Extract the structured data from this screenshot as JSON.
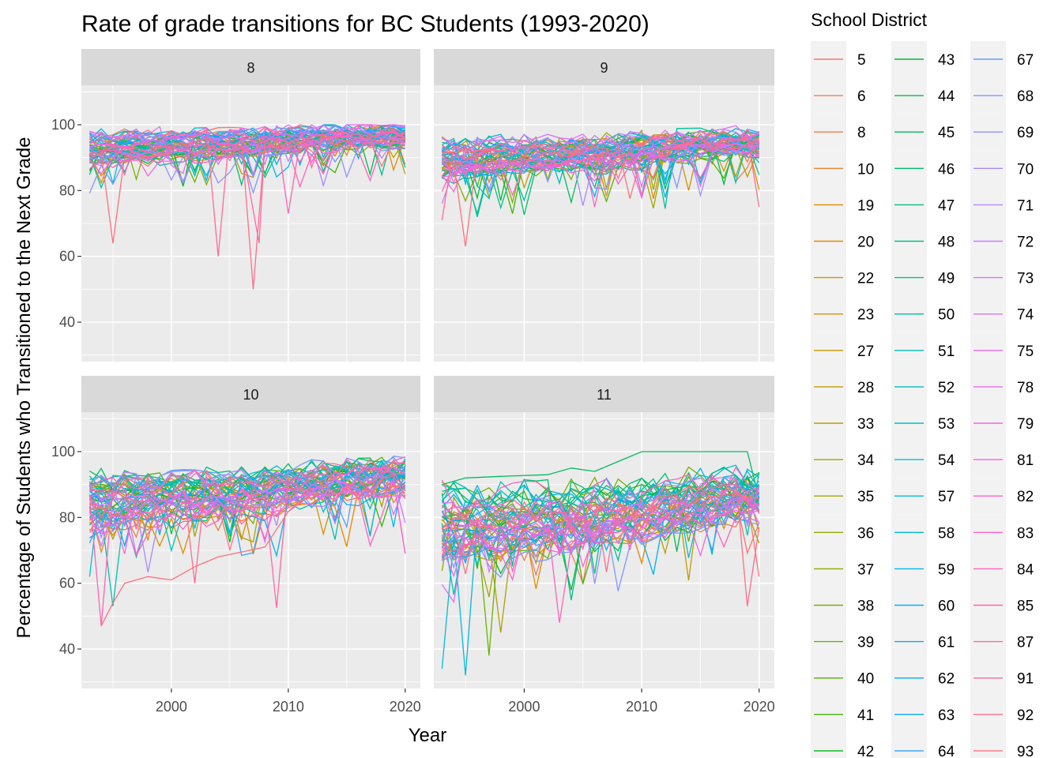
{
  "chart_data": {
    "type": "line",
    "title": "Rate of grade transitions for BC Students (1993-2020)",
    "xlabel": "Year",
    "ylabel": "Percentage of Students who Transitioned to the Next Grade",
    "xlim": [
      1992.3,
      2021.3
    ],
    "ylim": [
      28,
      112
    ],
    "x_ticks": [
      2000,
      2010,
      2020
    ],
    "y_ticks": [
      40,
      60,
      80,
      100
    ],
    "grid": true,
    "legend": {
      "title": "School District",
      "placement": "right",
      "entries": [
        "5",
        "6",
        "8",
        "10",
        "19",
        "20",
        "22",
        "23",
        "27",
        "28",
        "33",
        "34",
        "35",
        "36",
        "37",
        "38",
        "39",
        "40",
        "41",
        "42",
        "43",
        "44",
        "45",
        "46",
        "47",
        "48",
        "49",
        "50",
        "51",
        "52",
        "53",
        "54",
        "57",
        "58",
        "59",
        "60",
        "61",
        "62",
        "63",
        "64",
        "67",
        "68",
        "69",
        "70",
        "71",
        "72",
        "73",
        "74",
        "75",
        "78",
        "79",
        "81",
        "82",
        "83",
        "84",
        "85",
        "87",
        "91",
        "92",
        "93"
      ]
    },
    "panels": [
      {
        "grade": "8",
        "median_by_year": [
          [
            1993,
            92.5
          ],
          [
            1994,
            92.8
          ],
          [
            1995,
            92.6
          ],
          [
            1996,
            93.0
          ],
          [
            1997,
            93.4
          ],
          [
            1998,
            93.1
          ],
          [
            1999,
            93.5
          ],
          [
            2000,
            93.8
          ],
          [
            2001,
            94.0
          ],
          [
            2002,
            93.7
          ],
          [
            2003,
            94.2
          ],
          [
            2004,
            94.0
          ],
          [
            2005,
            94.3
          ],
          [
            2006,
            94.5
          ],
          [
            2007,
            94.2
          ],
          [
            2008,
            94.8
          ],
          [
            2009,
            95.0
          ],
          [
            2010,
            95.3
          ],
          [
            2011,
            95.5
          ],
          [
            2012,
            95.6
          ],
          [
            2013,
            95.8
          ],
          [
            2014,
            96.0
          ],
          [
            2015,
            96.1
          ],
          [
            2016,
            96.3
          ],
          [
            2017,
            96.5
          ],
          [
            2018,
            96.6
          ],
          [
            2019,
            96.8
          ],
          [
            2020,
            96.2
          ]
        ],
        "notable_lows": [
          {
            "district": "93",
            "year": 1995,
            "value": 64
          },
          {
            "district": "91",
            "year": 2004,
            "value": 60
          },
          {
            "district": "92",
            "year": 2007,
            "value": 50
          },
          {
            "district": "87",
            "year": 2007.5,
            "value": 64
          },
          {
            "district": "85",
            "year": 2010,
            "value": 73
          }
        ]
      },
      {
        "grade": "9",
        "median_by_year": [
          [
            1993,
            89.5
          ],
          [
            1994,
            89.7
          ],
          [
            1995,
            89.4
          ],
          [
            1996,
            89.8
          ],
          [
            1997,
            90.0
          ],
          [
            1998,
            90.2
          ],
          [
            1999,
            90.1
          ],
          [
            2000,
            90.5
          ],
          [
            2001,
            90.6
          ],
          [
            2002,
            90.4
          ],
          [
            2003,
            90.8
          ],
          [
            2004,
            91.0
          ],
          [
            2005,
            91.2
          ],
          [
            2006,
            91.0
          ],
          [
            2007,
            91.5
          ],
          [
            2008,
            91.8
          ],
          [
            2009,
            92.0
          ],
          [
            2010,
            92.4
          ],
          [
            2011,
            92.8
          ],
          [
            2012,
            93.0
          ],
          [
            2013,
            93.4
          ],
          [
            2014,
            93.6
          ],
          [
            2015,
            93.8
          ],
          [
            2016,
            94.0
          ],
          [
            2017,
            94.3
          ],
          [
            2018,
            94.5
          ],
          [
            2019,
            94.6
          ],
          [
            2020,
            94.0
          ]
        ],
        "notable_lows": [
          {
            "district": "92",
            "year": 1993,
            "value": 71
          },
          {
            "district": "93",
            "year": 1995,
            "value": 63
          },
          {
            "district": "50",
            "year": 1996,
            "value": 72
          },
          {
            "district": "84",
            "year": 2006,
            "value": 75
          },
          {
            "district": "49",
            "year": 2012,
            "value": 74.5
          },
          {
            "district": "92",
            "year": 2020,
            "value": 75
          }
        ]
      },
      {
        "grade": "10",
        "median_by_year": [
          [
            1993,
            84.0
          ],
          [
            1994,
            84.3
          ],
          [
            1995,
            84.0
          ],
          [
            1996,
            84.6
          ],
          [
            1997,
            84.8
          ],
          [
            1998,
            85.0
          ],
          [
            1999,
            85.2
          ],
          [
            2000,
            85.5
          ],
          [
            2001,
            85.8
          ],
          [
            2002,
            85.6
          ],
          [
            2003,
            86.0
          ],
          [
            2004,
            86.3
          ],
          [
            2005,
            86.5
          ],
          [
            2006,
            86.8
          ],
          [
            2007,
            87.0
          ],
          [
            2008,
            87.4
          ],
          [
            2009,
            87.8
          ],
          [
            2010,
            88.3
          ],
          [
            2011,
            88.8
          ],
          [
            2012,
            89.2
          ],
          [
            2013,
            89.6
          ],
          [
            2014,
            90.0
          ],
          [
            2015,
            90.4
          ],
          [
            2016,
            90.8
          ],
          [
            2017,
            91.2
          ],
          [
            2018,
            91.5
          ],
          [
            2019,
            91.8
          ],
          [
            2020,
            91.2
          ]
        ],
        "notable_lows": [
          {
            "district": "54",
            "year": 1993,
            "value": 62
          },
          {
            "district": "85",
            "year": 1994,
            "value": 47
          },
          {
            "district": "51",
            "year": 1995,
            "value": 53
          },
          {
            "district": "91",
            "year": 2002,
            "value": 60
          },
          {
            "district": "87",
            "year": 2009,
            "value": 52.5
          },
          {
            "district": "82",
            "year": 2020,
            "value": 69
          }
        ],
        "district_93_series": [
          [
            1994,
            47
          ],
          [
            1995,
            54
          ],
          [
            1996,
            60
          ],
          [
            1998,
            62
          ],
          [
            2000,
            61
          ],
          [
            2002,
            65
          ],
          [
            2004,
            68
          ],
          [
            2006,
            69.5
          ],
          [
            2008,
            71
          ]
        ]
      },
      {
        "grade": "11",
        "median_by_year": [
          [
            1993,
            78.0
          ],
          [
            1994,
            78.3
          ],
          [
            1995,
            78.0
          ],
          [
            1996,
            78.5
          ],
          [
            1997,
            78.2
          ],
          [
            1998,
            78.8
          ],
          [
            1999,
            79.0
          ],
          [
            2000,
            79.2
          ],
          [
            2001,
            79.0
          ],
          [
            2002,
            79.5
          ],
          [
            2003,
            79.8
          ],
          [
            2004,
            80.0
          ],
          [
            2005,
            80.3
          ],
          [
            2006,
            80.5
          ],
          [
            2007,
            80.8
          ],
          [
            2008,
            81.2
          ],
          [
            2009,
            81.5
          ],
          [
            2010,
            82.0
          ],
          [
            2011,
            82.6
          ],
          [
            2012,
            83.2
          ],
          [
            2013,
            83.8
          ],
          [
            2014,
            84.4
          ],
          [
            2015,
            85.0
          ],
          [
            2016,
            85.6
          ],
          [
            2017,
            86.2
          ],
          [
            2018,
            86.8
          ],
          [
            2019,
            87.2
          ],
          [
            2020,
            86.5
          ]
        ],
        "notable_lows": [
          {
            "district": "57",
            "year": 1993,
            "value": 34
          },
          {
            "district": "58",
            "year": 1995,
            "value": 32
          },
          {
            "district": "39",
            "year": 1997,
            "value": 38
          },
          {
            "district": "34",
            "year": 1998,
            "value": 45
          },
          {
            "district": "84",
            "year": 2003,
            "value": 48
          },
          {
            "district": "92",
            "year": 2019,
            "value": 53
          },
          {
            "district": "93",
            "year": 2020,
            "value": 62
          }
        ],
        "top_district_series": [
          [
            1993,
            90
          ],
          [
            1995,
            92
          ],
          [
            1998,
            92.5
          ],
          [
            2002,
            93
          ],
          [
            2004,
            95
          ],
          [
            2006,
            94
          ],
          [
            2008,
            97
          ],
          [
            2010,
            100
          ],
          [
            2019,
            100
          ]
        ]
      }
    ]
  }
}
